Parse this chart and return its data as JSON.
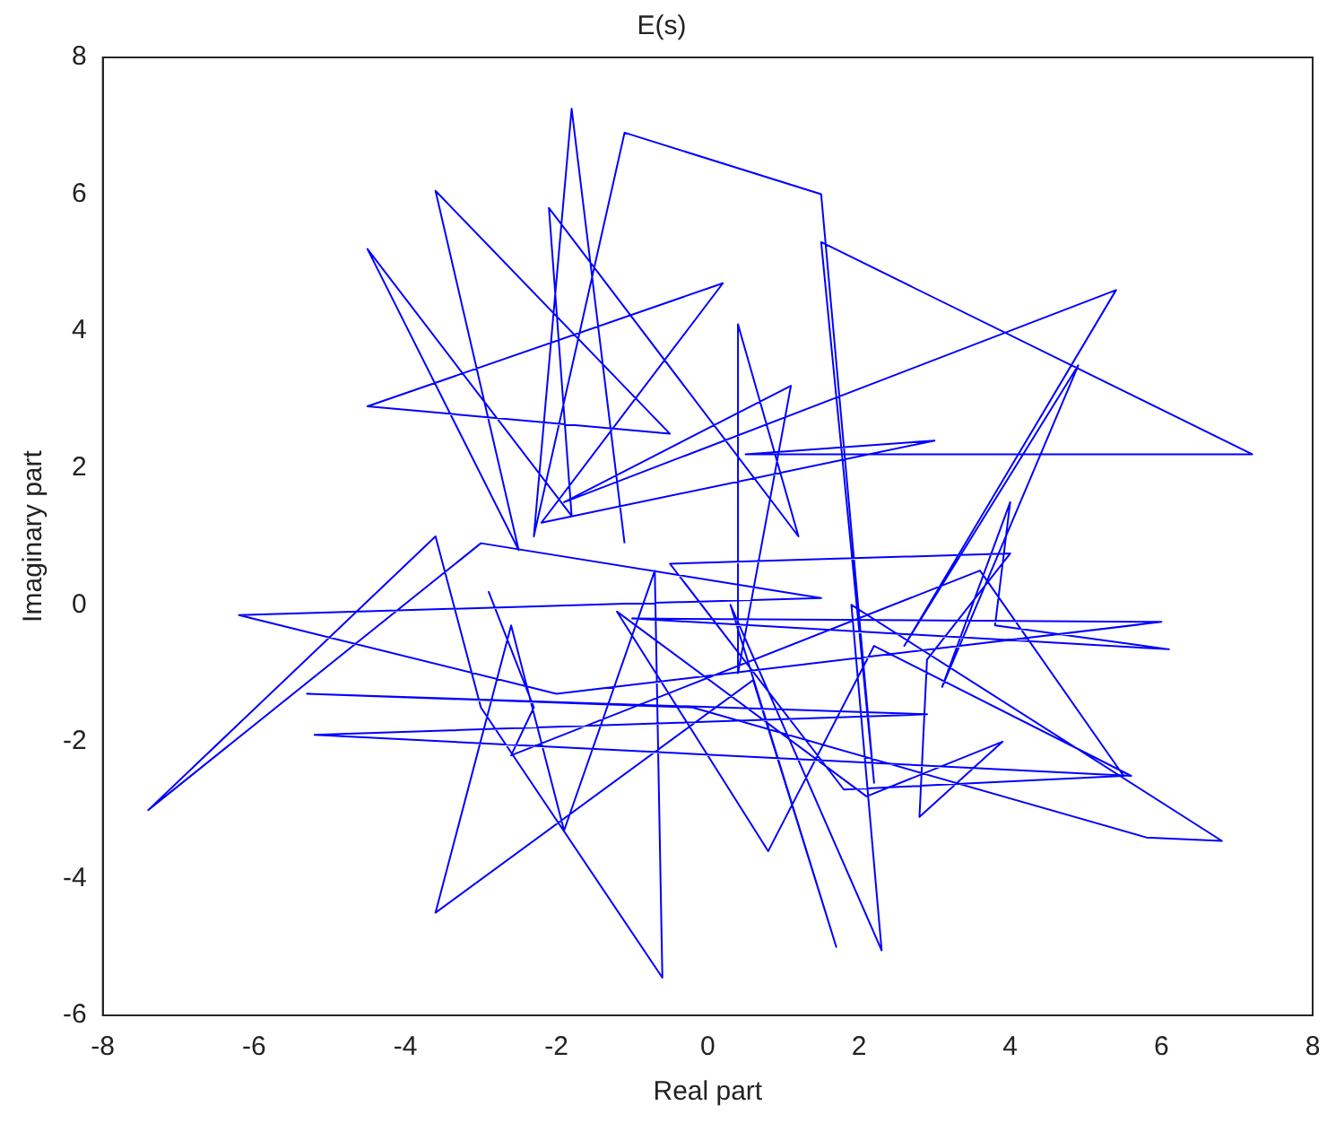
{
  "chart_data": {
    "type": "line",
    "title": "E(s)",
    "xlabel": "Real part",
    "ylabel": "Imaginary part",
    "xlim": [
      -8,
      8
    ],
    "ylim": [
      -6,
      8
    ],
    "xticks": [
      -8,
      -6,
      -4,
      -2,
      0,
      2,
      4,
      6,
      8
    ],
    "yticks": [
      -6,
      -4,
      -2,
      0,
      2,
      4,
      6,
      8
    ],
    "grid": false,
    "legend": false,
    "marker": "none",
    "line_style": "solid",
    "series": [
      {
        "color": "#0000ff",
        "x": [
          -1.1,
          -1.8,
          -2.3,
          -1.1,
          1.5,
          2.2,
          1.5,
          7.2,
          0.5,
          3.0,
          -2.2,
          0.2,
          -4.5,
          -0.5,
          -3.6,
          -2.5,
          -4.5,
          -1.8,
          -2.1,
          1.2,
          0.4,
          0.4,
          1.1,
          -1.9,
          5.4,
          2.6,
          4.9,
          3.1,
          4.0,
          3.8,
          6.1,
          -1.0,
          6.0,
          -2.0,
          -6.2,
          1.5,
          -3.0,
          -7.4,
          -3.6,
          -3.0,
          -0.6,
          -0.7,
          -1.9,
          -2.6,
          -3.6,
          0.6,
          1.7,
          0.3,
          2.3,
          1.9,
          6.8,
          5.8,
          -0.2,
          -5.3,
          2.9,
          -5.2,
          5.6,
          2.2,
          0.8,
          -1.2,
          2.1,
          3.9,
          2.8,
          2.9,
          4.0,
          -0.5,
          1.8,
          5.5,
          3.6,
          -2.6,
          -2.3,
          -2.9
        ],
        "values": [
          0.9,
          7.25,
          1.0,
          6.9,
          6.0,
          -2.6,
          5.3,
          2.2,
          2.2,
          2.4,
          1.2,
          4.7,
          2.9,
          2.5,
          6.05,
          0.8,
          5.2,
          1.3,
          5.8,
          1.0,
          4.1,
          -1.0,
          3.2,
          1.5,
          4.6,
          -0.6,
          3.5,
          -1.2,
          1.5,
          -0.3,
          -0.65,
          -0.2,
          -0.25,
          -1.3,
          -0.15,
          0.1,
          0.9,
          -3.0,
          1.0,
          -1.5,
          -5.45,
          0.5,
          -3.3,
          -0.3,
          -4.5,
          -1.1,
          -5.0,
          0.0,
          -5.05,
          0.0,
          -3.45,
          -3.4,
          -1.5,
          -1.3,
          -1.6,
          -1.9,
          -2.5,
          -0.6,
          -3.6,
          -0.1,
          -2.8,
          -2.0,
          -3.1,
          -0.8,
          0.75,
          0.6,
          -2.7,
          -2.5,
          0.5,
          -2.2,
          -1.5,
          0.2
        ]
      }
    ]
  }
}
